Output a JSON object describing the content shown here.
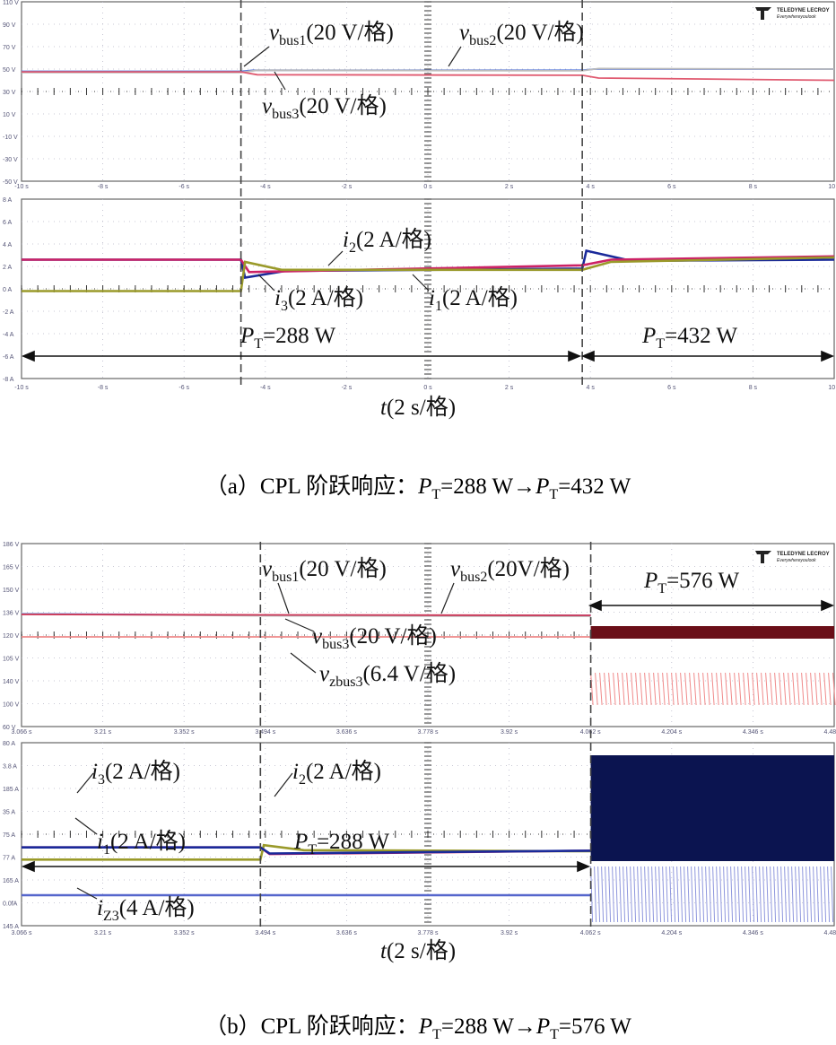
{
  "brand": "TELEDYNE LECROY",
  "brand_tagline": "Everywhereyoulook",
  "chart_data": [
    {
      "type": "line",
      "panel": "a",
      "caption": {
        "prefix": "（a）CPL 阶跃响应：",
        "P1": "P",
        "sub1": "T",
        "mid": "=288 W→",
        "P2": "P",
        "sub2": "T",
        "end": "=432 W"
      },
      "xlabel": {
        "var": "t",
        "unit": "(2 s/格)"
      },
      "step_times": [
        -4.6,
        3.8
      ],
      "voltage_axis": {
        "yticks": [
          "110 V",
          "90 V",
          "70 V",
          "50 V",
          "30 V",
          "10 V",
          "-10 V",
          "-30 V",
          "-50 V"
        ],
        "xticks": [
          "-10 s",
          "-8 s",
          "-6 s",
          "-4 s",
          "-2 s",
          "0 s",
          "2 s",
          "4 s",
          "6 s",
          "8 s",
          "10 s"
        ],
        "x_range": [
          -10,
          10
        ],
        "y_range": [
          -50,
          110
        ],
        "series": [
          {
            "name": "vbus1",
            "color": "#5577dd",
            "x": [
              -10,
              -4.6,
              -4.3,
              3.8,
              4.1,
              10
            ],
            "y": [
              48,
              48,
              49,
              49,
              50,
              50
            ]
          },
          {
            "name": "vbus2",
            "color": "#bbbbbb",
            "x": [
              -10,
              -4.6,
              -4.2,
              3.8,
              4.2,
              10
            ],
            "y": [
              47,
              47,
              49,
              48.5,
              50.5,
              50
            ]
          },
          {
            "name": "vbus3",
            "color": "#e05a70",
            "x": [
              -10,
              -4.6,
              -4.2,
              3.8,
              4.2,
              10
            ],
            "y": [
              47.5,
              47.5,
              45,
              44.5,
              42,
              40
            ]
          }
        ]
      },
      "current_axis": {
        "yticks": [
          "8 A",
          "6 A",
          "4 A",
          "2 A",
          "0 A",
          "-2 A",
          "-4 A",
          "-6 A",
          "-8 A"
        ],
        "xticks": [
          "-10 s",
          "-8 s",
          "-6 s",
          "-4 s",
          "-2 s",
          "0 s",
          "2 s",
          "4 s",
          "6 s",
          "8 s",
          "10 s"
        ],
        "x_range": [
          -10,
          10
        ],
        "y_range": [
          -8,
          8
        ],
        "series": [
          {
            "name": "i1",
            "color": "#1a2a9a",
            "x": [
              -10,
              -4.6,
              -4.5,
              -3.5,
              3.8,
              3.9,
              5,
              10
            ],
            "y": [
              2.6,
              2.6,
              1.0,
              1.6,
              1.8,
              3.4,
              2.5,
              2.6
            ]
          },
          {
            "name": "i2",
            "color": "#cc2266",
            "x": [
              -10,
              -4.6,
              -4.4,
              3.8,
              4.5,
              10
            ],
            "y": [
              2.6,
              2.6,
              1.5,
              2.1,
              2.6,
              2.9
            ]
          },
          {
            "name": "i3",
            "color": "#9a9a2a",
            "x": [
              -10,
              -4.6,
              -4.5,
              -3.6,
              3.8,
              4.5,
              10
            ],
            "y": [
              -0.2,
              -0.2,
              2.4,
              1.7,
              1.7,
              2.4,
              2.8
            ]
          }
        ]
      },
      "annotations": {
        "vbus1": {
          "v": "v",
          "sub": "bus1",
          "unit": "(20 V/格)"
        },
        "vbus2": {
          "v": "v",
          "sub": "bus2",
          "unit": "(20 V/格)"
        },
        "vbus3": {
          "v": "v",
          "sub": "bus3",
          "unit": "(20 V/格)"
        },
        "i1": {
          "v": "i",
          "sub": "1",
          "unit": "(2 A/格)"
        },
        "i2": {
          "v": "i",
          "sub": "2",
          "unit": "(2 A/格)"
        },
        "i3": {
          "v": "i",
          "sub": "3",
          "unit": "(2 A/格)"
        },
        "pt1": {
          "v": "P",
          "sub": "T",
          "unit": "=288 W"
        },
        "pt2": {
          "v": "P",
          "sub": "T",
          "unit": "=432 W"
        }
      }
    },
    {
      "type": "line",
      "panel": "b",
      "caption": {
        "prefix": "（b）CPL 阶跃响应：",
        "P1": "P",
        "sub1": "T",
        "mid": "=288 W→",
        "P2": "P",
        "sub2": "T",
        "end": "=576 W"
      },
      "xlabel": {
        "var": "t",
        "unit": "(2 s/格)"
      },
      "step_times": [
        3.484,
        4.062
      ],
      "voltage_axis": {
        "yticks": [
          "186 V",
          "165 V",
          "150 V",
          "136 V",
          "120 V",
          "105 V",
          "140 V",
          "100 V",
          "60 V"
        ],
        "xticks": [
          "3.066 s",
          "3.21 s",
          "3.352 s",
          "3.494 s",
          "3.636 s",
          "3.778 s",
          "3.92 s",
          "4.062 s",
          "4.204 s",
          "4.346 s",
          "4.488 s"
        ],
        "x_range": [
          3.066,
          4.488
        ],
        "series": [
          {
            "name": "vbus1",
            "color": "#7799ee",
            "x": [
              3.066,
              3.484,
              4.062
            ],
            "y": [
              136,
              134,
              134
            ]
          },
          {
            "name": "vbus2",
            "color": "#bbbbbb",
            "x": [
              3.066,
              3.484,
              4.062
            ],
            "y": [
              135.5,
              133.5,
              133
            ]
          },
          {
            "name": "vbus3",
            "color": "#cc3355",
            "x": [
              3.066,
              3.484,
              4.062
            ],
            "y": [
              135,
              134.5,
              134
            ]
          },
          {
            "name": "vzbus3",
            "color": "#ee8888",
            "x": [
              3.066,
              4.062
            ],
            "y": [
              110,
              110
            ]
          }
        ]
      },
      "current_axis": {
        "yticks": [
          "80 A",
          "3.8 A",
          "185 A",
          "35 A",
          "75 A",
          "77 A",
          "165 A",
          "0.0fA",
          "145 A"
        ],
        "xticks": [
          "3.066 s",
          "3.21 s",
          "3.352 s",
          "3.494 s",
          "3.636 s",
          "3.778 s",
          "3.92 s",
          "4.062 s",
          "4.204 s",
          "4.346 s",
          "4.488 s"
        ],
        "x_range": [
          3.066,
          4.488
        ],
        "series": [
          {
            "name": "i3",
            "color": "#cc2266",
            "x": [
              3.066,
              3.484,
              3.5,
              4.062
            ],
            "y": [
              4.4,
              4.4,
              3.2,
              3.8
            ]
          },
          {
            "name": "i1",
            "color": "#9a9a2a",
            "x": [
              3.066,
              3.484,
              3.49,
              3.56,
              4.062
            ],
            "y": [
              2.2,
              2.2,
              4.8,
              3.9,
              3.7
            ]
          },
          {
            "name": "i2",
            "color": "#1a2a9a",
            "x": [
              3.066,
              3.484,
              3.5,
              4.062
            ],
            "y": [
              4.4,
              4.4,
              3.3,
              3.8
            ]
          },
          {
            "name": "iz3",
            "color": "#5566cc",
            "x": [
              3.066,
              4.062
            ],
            "y": [
              -4.2,
              -4.2
            ]
          }
        ]
      },
      "annotations": {
        "vbus1": {
          "v": "v",
          "sub": "bus1",
          "unit": "(20 V/格)"
        },
        "vbus2": {
          "v": "v",
          "sub": "bus2",
          "unit": "(20V/格)"
        },
        "vbus3": {
          "v": "v",
          "sub": "bus3",
          "unit": "(20 V/格)"
        },
        "vzbus3": {
          "v": "v",
          "sub": "zbus3",
          "unit": "(6.4 V/格)"
        },
        "i1": {
          "v": "i",
          "sub": "1",
          "unit": "(2 A/格)"
        },
        "i2": {
          "v": "i",
          "sub": "2",
          "unit": "(2 A/格)"
        },
        "i3": {
          "v": "i",
          "sub": "3",
          "unit": "(2 A/格)"
        },
        "iz3": {
          "v": "i",
          "sub": "Z3",
          "unit": "(4 A/格)"
        },
        "pt1": {
          "v": "P",
          "sub": "T",
          "unit": "=288 W"
        },
        "pt2": {
          "v": "P",
          "sub": "T",
          "unit": "=576 W"
        }
      }
    }
  ]
}
